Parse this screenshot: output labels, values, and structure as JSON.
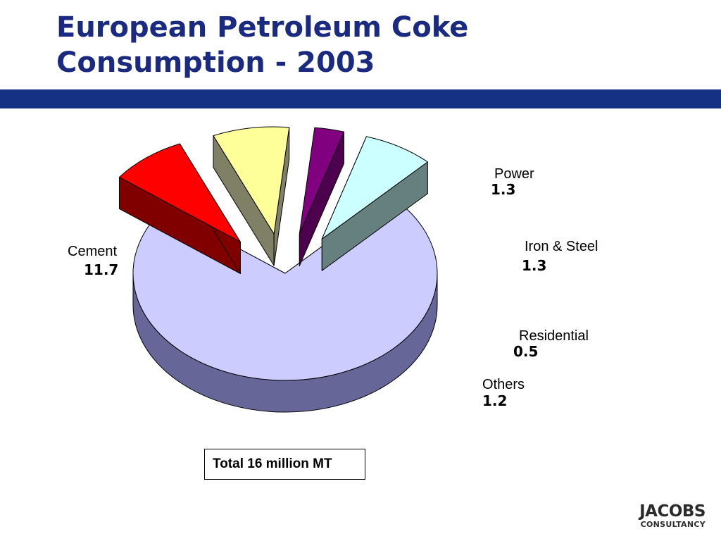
{
  "slide": {
    "title_line1": "European Petroleum Coke",
    "title_line2": "Consumption - 2003",
    "accent_color": "#143184",
    "total_text": "Total 16 million MT",
    "logo_main": "JACOBS",
    "logo_sub": "CONSULTANCY"
  },
  "chart_data": {
    "type": "pie",
    "title": "European Petroleum Coke Consumption - 2003",
    "exploded": true,
    "three_d": true,
    "slices": [
      {
        "name": "Cement",
        "value": 11.7,
        "value_label": "11.7",
        "color": "#ccccff",
        "side_color": "#666699"
      },
      {
        "name": "Power",
        "value": 1.3,
        "value_label": "1.3",
        "color": "#ff0000",
        "side_color": "#800000"
      },
      {
        "name": "Iron & Steel",
        "value": 1.3,
        "value_label": "1.3",
        "color": "#ffff99",
        "side_color": "#808066"
      },
      {
        "name": "Residential",
        "value": 0.5,
        "value_label": "0.5",
        "color": "#800080",
        "side_color": "#4d004d"
      },
      {
        "name": "Others",
        "value": 1.2,
        "value_label": "1.2",
        "color": "#ccffff",
        "side_color": "#668080"
      }
    ],
    "total_label": "Total 16 million MT"
  }
}
